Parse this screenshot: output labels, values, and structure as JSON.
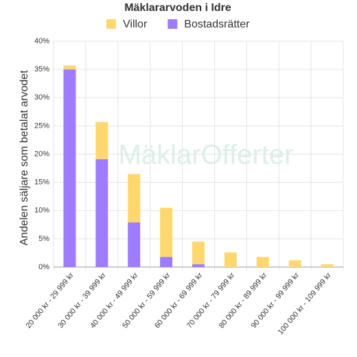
{
  "chart_data": {
    "type": "stacked-bar",
    "title": "Mäklararvoden i Idre",
    "watermark": "MäklarOfferter",
    "y_label": "Andelen säljare som betalat arvodet",
    "categories": [
      "20 000 kr - 29 999 kr",
      "30 000 kr - 39 999 kr",
      "40 000 kr - 49 999 kr",
      "50 000 kr - 59 999 kr",
      "60 000 kr - 69 999 kr",
      "70 000 kr - 79 999 kr",
      "80 000 kr - 89 999 kr",
      "90 000 kr - 99 999 kr",
      "100 000 kr - 109 999 kr"
    ],
    "series": [
      {
        "name": "Villor",
        "color": "#fed86f",
        "values": [
          0.7,
          6.6,
          8.6,
          8.7,
          4.0,
          2.6,
          1.8,
          1.2,
          0.5
        ]
      },
      {
        "name": "Bostadsrätter",
        "color": "#9d7dfd",
        "values": [
          35.0,
          19.1,
          7.9,
          1.8,
          0.5,
          0,
          0,
          0,
          0
        ]
      }
    ],
    "ylim": [
      0,
      40
    ],
    "yticks": [
      {
        "value": 0,
        "label": "0%"
      },
      {
        "value": 5,
        "label": "5%"
      },
      {
        "value": 10,
        "label": "10%"
      },
      {
        "value": 15,
        "label": "15%"
      },
      {
        "value": 20,
        "label": "20%"
      },
      {
        "value": 25,
        "label": "25%"
      },
      {
        "value": 30,
        "label": "30%"
      },
      {
        "value": 35,
        "label": "35%"
      },
      {
        "value": 40,
        "label": "40%"
      }
    ],
    "grid": true
  }
}
